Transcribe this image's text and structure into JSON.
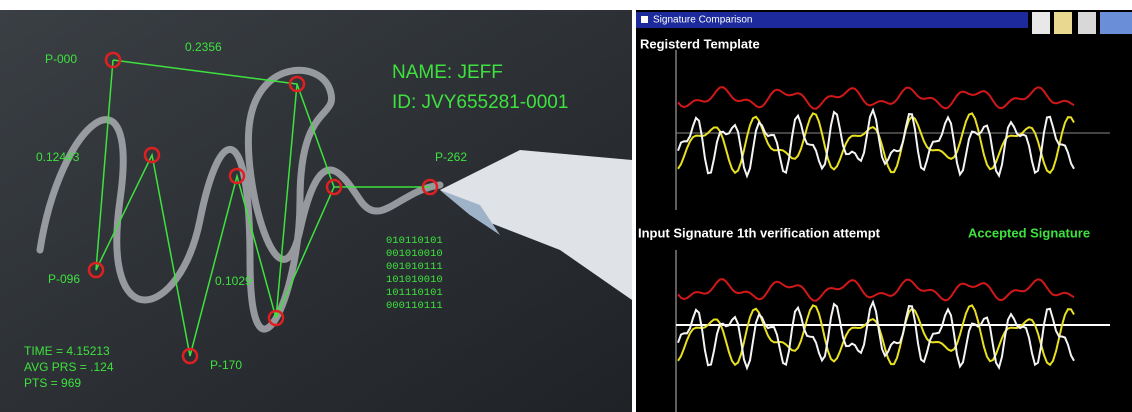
{
  "left_panel": {
    "point_labels": [
      "P-000",
      "P-096",
      "P-170",
      "P-262"
    ],
    "distances": [
      "0.2356",
      "0.12443",
      "0.1029"
    ],
    "name": "NAME: JEFF",
    "id": "ID: JVY655281-0001",
    "binary": [
      "010110101",
      "001010010",
      "001010111",
      "101010010",
      "101110101",
      "000110111"
    ],
    "stats": [
      "TIME = 4.15213",
      "AVG PRS = .124",
      "PTS = 969"
    ]
  },
  "right_panel": {
    "window_title": "Signature Comparison",
    "template_label": "Registerd Template",
    "input_label": "Input Signature 1th verification attempt",
    "status": "Accepted Signature"
  }
}
